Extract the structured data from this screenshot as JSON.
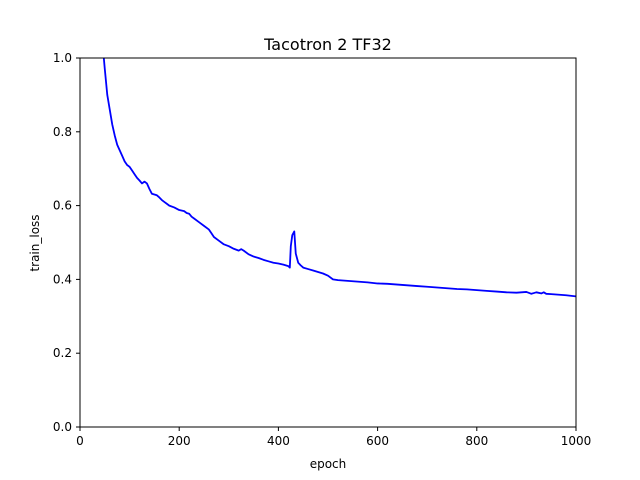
{
  "chart_data": {
    "type": "line",
    "title": "Tacotron 2 TF32",
    "xlabel": "epoch",
    "ylabel": "train_loss",
    "xlim": [
      0,
      1000
    ],
    "ylim": [
      0.0,
      1.0
    ],
    "xticks": [
      0,
      200,
      400,
      600,
      800,
      1000
    ],
    "xtick_labels": [
      "0",
      "200",
      "400",
      "600",
      "800",
      "1000"
    ],
    "yticks": [
      0.0,
      0.2,
      0.4,
      0.6,
      0.8,
      1.0
    ],
    "ytick_labels": [
      "0.0",
      "0.2",
      "0.4",
      "0.6",
      "0.8",
      "1.0"
    ],
    "grid": false,
    "series": [
      {
        "color": "#0000ff",
        "x": [
          48,
          50,
          55,
          60,
          65,
          70,
          75,
          80,
          85,
          90,
          95,
          100,
          105,
          110,
          115,
          120,
          125,
          130,
          135,
          140,
          145,
          150,
          155,
          160,
          165,
          170,
          175,
          180,
          190,
          200,
          210,
          215,
          220,
          225,
          230,
          240,
          250,
          260,
          265,
          270,
          280,
          290,
          300,
          310,
          320,
          325,
          330,
          340,
          350,
          360,
          370,
          380,
          390,
          400,
          410,
          420,
          423,
          425,
          428,
          430,
          432,
          435,
          440,
          445,
          450,
          460,
          470,
          480,
          490,
          500,
          510,
          520,
          540,
          560,
          580,
          600,
          620,
          640,
          660,
          680,
          700,
          720,
          740,
          760,
          780,
          800,
          820,
          840,
          860,
          880,
          900,
          910,
          915,
          920,
          930,
          935,
          940,
          950,
          960,
          980,
          1000
        ],
        "y": [
          1.0,
          0.97,
          0.9,
          0.86,
          0.82,
          0.79,
          0.765,
          0.75,
          0.735,
          0.72,
          0.71,
          0.705,
          0.695,
          0.685,
          0.675,
          0.668,
          0.66,
          0.665,
          0.66,
          0.645,
          0.632,
          0.63,
          0.628,
          0.622,
          0.615,
          0.61,
          0.605,
          0.6,
          0.595,
          0.588,
          0.585,
          0.58,
          0.578,
          0.57,
          0.565,
          0.555,
          0.545,
          0.535,
          0.525,
          0.515,
          0.505,
          0.495,
          0.49,
          0.483,
          0.478,
          0.482,
          0.478,
          0.468,
          0.462,
          0.458,
          0.453,
          0.449,
          0.445,
          0.443,
          0.44,
          0.436,
          0.432,
          0.49,
          0.52,
          0.525,
          0.53,
          0.47,
          0.445,
          0.438,
          0.432,
          0.428,
          0.424,
          0.42,
          0.416,
          0.41,
          0.4,
          0.398,
          0.396,
          0.394,
          0.392,
          0.389,
          0.388,
          0.386,
          0.384,
          0.382,
          0.38,
          0.378,
          0.376,
          0.374,
          0.373,
          0.371,
          0.369,
          0.367,
          0.365,
          0.364,
          0.366,
          0.361,
          0.363,
          0.365,
          0.362,
          0.365,
          0.361,
          0.36,
          0.359,
          0.357,
          0.354
        ]
      }
    ]
  }
}
